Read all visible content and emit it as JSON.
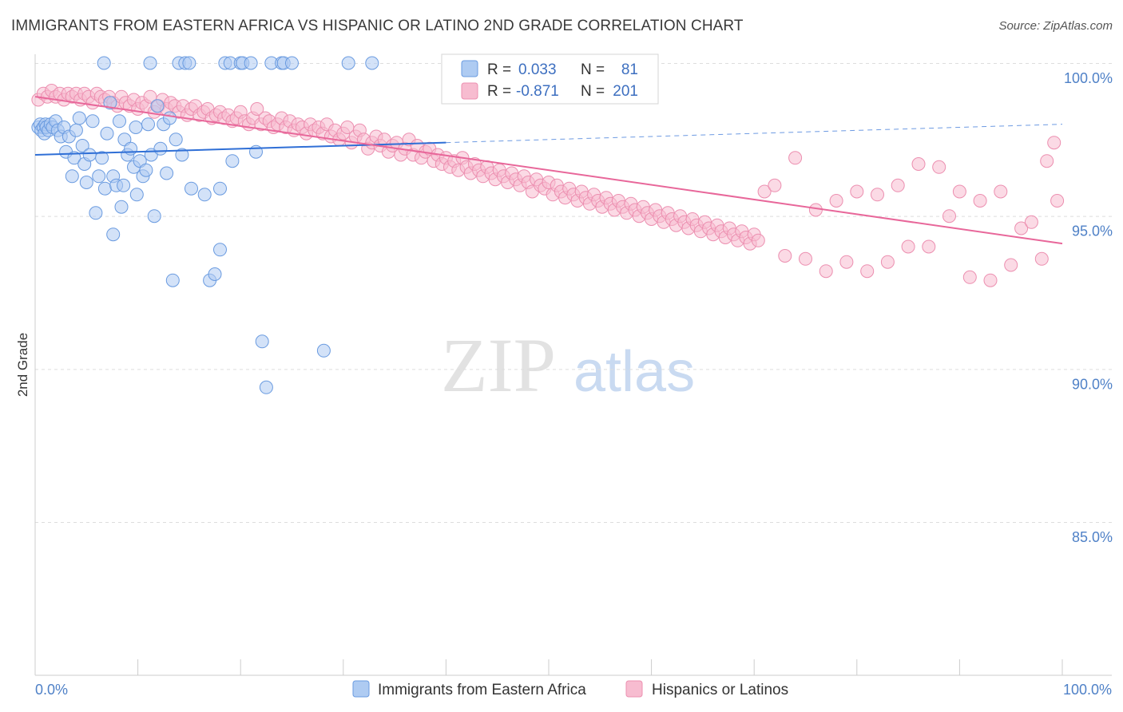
{
  "title": "IMMIGRANTS FROM EASTERN AFRICA VS HISPANIC OR LATINO 2ND GRADE CORRELATION CHART",
  "source": "Source: ZipAtlas.com",
  "watermark": {
    "zip": "ZIP",
    "atlas": "atlas"
  },
  "colors": {
    "blue_fill": "#aecbf2",
    "blue_stroke": "#6a9be0",
    "blue_line": "#2f6fd6",
    "pink_fill": "#f7bcd0",
    "pink_stroke": "#ec8fb0",
    "pink_line": "#e8679a",
    "tick": "#4f81c7"
  },
  "legend": {
    "r_label": "R =",
    "n_label": "N =",
    "blue": {
      "r": "0.033",
      "n": "81"
    },
    "pink": {
      "r": "-0.871",
      "n": "201"
    }
  },
  "chart_data": {
    "type": "scatter",
    "title": "IMMIGRANTS FROM EASTERN AFRICA VS HISPANIC OR LATINO 2ND GRADE CORRELATION CHART",
    "xlabel": "",
    "ylabel": "2nd Grade",
    "xlim": [
      0,
      100
    ],
    "ylim": [
      80,
      101
    ],
    "x_tick_labels": [
      "0.0%",
      "100.0%"
    ],
    "y_ticks": [
      100,
      95,
      90,
      85
    ],
    "y_tick_labels": [
      "100.0%",
      "95.0%",
      "90.0%",
      "85.0%"
    ],
    "series": [
      {
        "name": "Immigrants from Eastern Africa",
        "R": 0.033,
        "N": 81,
        "trend": {
          "x0": 0,
          "y0": 97.0,
          "x1": 40,
          "y1": 97.4,
          "dash_to_x": 100,
          "dash_to_y": 98.0
        },
        "points": [
          [
            0.3,
            97.9
          ],
          [
            0.5,
            98.0
          ],
          [
            0.6,
            97.8
          ],
          [
            0.8,
            97.9
          ],
          [
            0.9,
            97.7
          ],
          [
            1.0,
            98.0
          ],
          [
            1.1,
            97.9
          ],
          [
            1.3,
            97.8
          ],
          [
            1.5,
            98.0
          ],
          [
            1.7,
            97.9
          ],
          [
            2.0,
            98.1
          ],
          [
            2.2,
            97.8
          ],
          [
            2.5,
            97.6
          ],
          [
            2.8,
            97.9
          ],
          [
            3.0,
            97.1
          ],
          [
            3.3,
            97.6
          ],
          [
            3.6,
            96.3
          ],
          [
            3.8,
            96.9
          ],
          [
            4.0,
            97.8
          ],
          [
            4.3,
            98.2
          ],
          [
            4.6,
            97.3
          ],
          [
            4.8,
            96.7
          ],
          [
            5.0,
            96.1
          ],
          [
            5.3,
            97.0
          ],
          [
            5.6,
            98.1
          ],
          [
            5.9,
            95.1
          ],
          [
            6.2,
            96.3
          ],
          [
            6.5,
            96.9
          ],
          [
            6.8,
            95.9
          ],
          [
            7.0,
            97.7
          ],
          [
            7.3,
            98.7
          ],
          [
            7.6,
            96.3
          ],
          [
            7.9,
            96.0
          ],
          [
            8.2,
            98.1
          ],
          [
            8.4,
            95.3
          ],
          [
            8.7,
            97.5
          ],
          [
            9.0,
            97.0
          ],
          [
            9.3,
            97.2
          ],
          [
            9.6,
            96.6
          ],
          [
            9.9,
            95.7
          ],
          [
            10.2,
            96.8
          ],
          [
            10.5,
            96.3
          ],
          [
            10.8,
            96.5
          ],
          [
            11.0,
            98.0
          ],
          [
            11.3,
            97.0
          ],
          [
            11.6,
            95.0
          ],
          [
            11.9,
            98.6
          ],
          [
            12.2,
            97.2
          ],
          [
            12.5,
            98.0
          ],
          [
            12.8,
            96.4
          ],
          [
            13.1,
            98.2
          ],
          [
            13.4,
            92.9
          ],
          [
            13.7,
            97.5
          ],
          [
            14.0,
            100.0
          ],
          [
            14.3,
            97.0
          ],
          [
            14.6,
            100.0
          ],
          [
            15.0,
            100.0
          ],
          [
            15.2,
            95.9
          ],
          [
            6.7,
            100.0
          ],
          [
            8.6,
            96.0
          ],
          [
            11.2,
            100.0
          ],
          [
            16.5,
            95.7
          ],
          [
            17.0,
            92.9
          ],
          [
            17.5,
            93.1
          ],
          [
            18.0,
            95.9
          ],
          [
            18.0,
            93.9
          ],
          [
            18.5,
            100.0
          ],
          [
            19.0,
            100.0
          ],
          [
            19.2,
            96.8
          ],
          [
            20.0,
            100.0
          ],
          [
            20.2,
            100.0
          ],
          [
            21.0,
            100.0
          ],
          [
            21.5,
            97.1
          ],
          [
            22.1,
            90.9
          ],
          [
            22.5,
            89.4
          ],
          [
            23.0,
            100.0
          ],
          [
            24.0,
            100.0
          ],
          [
            24.2,
            100.0
          ],
          [
            25.0,
            100.0
          ],
          [
            28.1,
            90.6
          ],
          [
            30.5,
            100.0
          ],
          [
            32.8,
            100.0
          ],
          [
            7.6,
            94.4
          ],
          [
            9.8,
            97.9
          ]
        ]
      },
      {
        "name": "Hispanics or Latinos",
        "R": -0.871,
        "N": 201,
        "trend": {
          "x0": 0,
          "y0": 98.9,
          "x1": 100,
          "y1": 94.1
        },
        "points": [
          [
            0.3,
            98.8
          ],
          [
            0.8,
            99.0
          ],
          [
            1.2,
            98.9
          ],
          [
            1.6,
            99.1
          ],
          [
            2.0,
            98.9
          ],
          [
            2.4,
            99.0
          ],
          [
            2.8,
            98.8
          ],
          [
            3.2,
            99.0
          ],
          [
            3.6,
            98.9
          ],
          [
            4.0,
            99.0
          ],
          [
            4.4,
            98.8
          ],
          [
            4.8,
            99.0
          ],
          [
            5.2,
            98.9
          ],
          [
            5.6,
            98.7
          ],
          [
            6.0,
            99.0
          ],
          [
            6.4,
            98.9
          ],
          [
            6.8,
            98.8
          ],
          [
            7.2,
            98.9
          ],
          [
            7.6,
            98.7
          ],
          [
            8.0,
            98.6
          ],
          [
            8.4,
            98.9
          ],
          [
            8.8,
            98.7
          ],
          [
            9.2,
            98.6
          ],
          [
            9.6,
            98.8
          ],
          [
            10.0,
            98.5
          ],
          [
            10.4,
            98.7
          ],
          [
            10.8,
            98.6
          ],
          [
            11.2,
            98.9
          ],
          [
            11.6,
            98.4
          ],
          [
            12.0,
            98.6
          ],
          [
            12.4,
            98.8
          ],
          [
            12.8,
            98.5
          ],
          [
            13.2,
            98.7
          ],
          [
            13.6,
            98.6
          ],
          [
            14.0,
            98.4
          ],
          [
            14.4,
            98.6
          ],
          [
            14.8,
            98.3
          ],
          [
            15.2,
            98.5
          ],
          [
            15.6,
            98.6
          ],
          [
            16.0,
            98.3
          ],
          [
            16.4,
            98.4
          ],
          [
            16.8,
            98.5
          ],
          [
            17.2,
            98.2
          ],
          [
            17.6,
            98.3
          ],
          [
            18.0,
            98.4
          ],
          [
            18.4,
            98.2
          ],
          [
            18.8,
            98.3
          ],
          [
            19.2,
            98.1
          ],
          [
            19.6,
            98.2
          ],
          [
            20.0,
            98.4
          ],
          [
            20.4,
            98.1
          ],
          [
            20.8,
            98.0
          ],
          [
            21.2,
            98.2
          ],
          [
            21.6,
            98.5
          ],
          [
            22.0,
            98.0
          ],
          [
            22.4,
            98.2
          ],
          [
            22.8,
            98.1
          ],
          [
            23.2,
            97.9
          ],
          [
            23.6,
            98.0
          ],
          [
            24.0,
            98.2
          ],
          [
            24.4,
            97.9
          ],
          [
            24.8,
            98.1
          ],
          [
            25.2,
            97.8
          ],
          [
            25.6,
            98.0
          ],
          [
            26.0,
            97.9
          ],
          [
            26.4,
            97.7
          ],
          [
            26.8,
            98.0
          ],
          [
            27.2,
            97.8
          ],
          [
            27.6,
            97.9
          ],
          [
            28.0,
            97.7
          ],
          [
            28.4,
            98.0
          ],
          [
            28.8,
            97.6
          ],
          [
            29.2,
            97.8
          ],
          [
            29.6,
            97.5
          ],
          [
            30.0,
            97.7
          ],
          [
            30.4,
            97.9
          ],
          [
            30.8,
            97.4
          ],
          [
            31.2,
            97.6
          ],
          [
            31.6,
            97.8
          ],
          [
            32.0,
            97.5
          ],
          [
            32.4,
            97.2
          ],
          [
            32.8,
            97.4
          ],
          [
            33.2,
            97.6
          ],
          [
            33.6,
            97.3
          ],
          [
            34.0,
            97.5
          ],
          [
            34.4,
            97.1
          ],
          [
            34.8,
            97.3
          ],
          [
            35.2,
            97.4
          ],
          [
            35.6,
            97.0
          ],
          [
            36.0,
            97.2
          ],
          [
            36.4,
            97.5
          ],
          [
            36.8,
            97.0
          ],
          [
            37.2,
            97.3
          ],
          [
            37.6,
            96.9
          ],
          [
            38.0,
            97.1
          ],
          [
            38.4,
            97.2
          ],
          [
            38.8,
            96.8
          ],
          [
            39.2,
            97.0
          ],
          [
            39.6,
            96.7
          ],
          [
            40.0,
            96.9
          ],
          [
            40.4,
            96.6
          ],
          [
            40.8,
            96.8
          ],
          [
            41.2,
            96.5
          ],
          [
            41.6,
            96.9
          ],
          [
            42.0,
            96.6
          ],
          [
            42.4,
            96.4
          ],
          [
            42.8,
            96.7
          ],
          [
            43.2,
            96.5
          ],
          [
            43.6,
            96.3
          ],
          [
            44.0,
            96.6
          ],
          [
            44.4,
            96.4
          ],
          [
            44.8,
            96.2
          ],
          [
            45.2,
            96.5
          ],
          [
            45.6,
            96.3
          ],
          [
            46.0,
            96.1
          ],
          [
            46.4,
            96.4
          ],
          [
            46.8,
            96.2
          ],
          [
            47.2,
            96.0
          ],
          [
            47.6,
            96.3
          ],
          [
            48.0,
            96.1
          ],
          [
            48.4,
            95.8
          ],
          [
            48.8,
            96.2
          ],
          [
            49.2,
            96.0
          ],
          [
            49.6,
            95.9
          ],
          [
            50.0,
            96.1
          ],
          [
            50.4,
            95.7
          ],
          [
            50.8,
            96.0
          ],
          [
            51.2,
            95.8
          ],
          [
            51.6,
            95.6
          ],
          [
            52.0,
            95.9
          ],
          [
            52.4,
            95.7
          ],
          [
            52.8,
            95.5
          ],
          [
            53.2,
            95.8
          ],
          [
            53.6,
            95.6
          ],
          [
            54.0,
            95.4
          ],
          [
            54.4,
            95.7
          ],
          [
            54.8,
            95.5
          ],
          [
            55.2,
            95.3
          ],
          [
            55.6,
            95.6
          ],
          [
            56.0,
            95.4
          ],
          [
            56.4,
            95.2
          ],
          [
            56.8,
            95.5
          ],
          [
            57.2,
            95.3
          ],
          [
            57.6,
            95.1
          ],
          [
            58.0,
            95.4
          ],
          [
            58.4,
            95.2
          ],
          [
            58.8,
            95.0
          ],
          [
            59.2,
            95.3
          ],
          [
            59.6,
            95.1
          ],
          [
            60.0,
            94.9
          ],
          [
            60.4,
            95.2
          ],
          [
            60.8,
            95.0
          ],
          [
            61.2,
            94.8
          ],
          [
            61.6,
            95.1
          ],
          [
            62.0,
            94.9
          ],
          [
            62.4,
            94.7
          ],
          [
            62.8,
            95.0
          ],
          [
            63.2,
            94.8
          ],
          [
            63.6,
            94.6
          ],
          [
            64.0,
            94.9
          ],
          [
            64.4,
            94.7
          ],
          [
            64.8,
            94.5
          ],
          [
            65.2,
            94.8
          ],
          [
            65.6,
            94.6
          ],
          [
            66.0,
            94.4
          ],
          [
            66.4,
            94.7
          ],
          [
            66.8,
            94.5
          ],
          [
            67.2,
            94.3
          ],
          [
            67.6,
            94.6
          ],
          [
            68.0,
            94.4
          ],
          [
            68.4,
            94.2
          ],
          [
            68.8,
            94.5
          ],
          [
            69.2,
            94.3
          ],
          [
            69.6,
            94.1
          ],
          [
            70.0,
            94.4
          ],
          [
            70.4,
            94.2
          ],
          [
            71.0,
            95.8
          ],
          [
            72.0,
            96.0
          ],
          [
            73.0,
            93.7
          ],
          [
            74.0,
            96.9
          ],
          [
            75.0,
            93.6
          ],
          [
            76.0,
            95.2
          ],
          [
            77.0,
            93.2
          ],
          [
            78.0,
            95.5
          ],
          [
            79.0,
            93.5
          ],
          [
            80.0,
            95.8
          ],
          [
            81.0,
            93.2
          ],
          [
            82.0,
            95.7
          ],
          [
            83.0,
            93.5
          ],
          [
            84.0,
            96.0
          ],
          [
            85.0,
            94.0
          ],
          [
            86.0,
            96.7
          ],
          [
            87.0,
            94.0
          ],
          [
            88.0,
            96.6
          ],
          [
            89.0,
            95.0
          ],
          [
            90.0,
            95.8
          ],
          [
            91.0,
            93.0
          ],
          [
            92.0,
            95.5
          ],
          [
            93.0,
            92.9
          ],
          [
            94.0,
            95.8
          ],
          [
            95.0,
            93.4
          ],
          [
            96.0,
            94.6
          ],
          [
            97.0,
            94.8
          ],
          [
            98.0,
            93.6
          ],
          [
            98.5,
            96.8
          ],
          [
            99.2,
            97.4
          ],
          [
            99.5,
            95.5
          ]
        ]
      }
    ],
    "legend_position": "top-center"
  },
  "bottom_legend": {
    "blue_label": "Immigrants from Eastern Africa",
    "pink_label": "Hispanics or Latinos"
  }
}
